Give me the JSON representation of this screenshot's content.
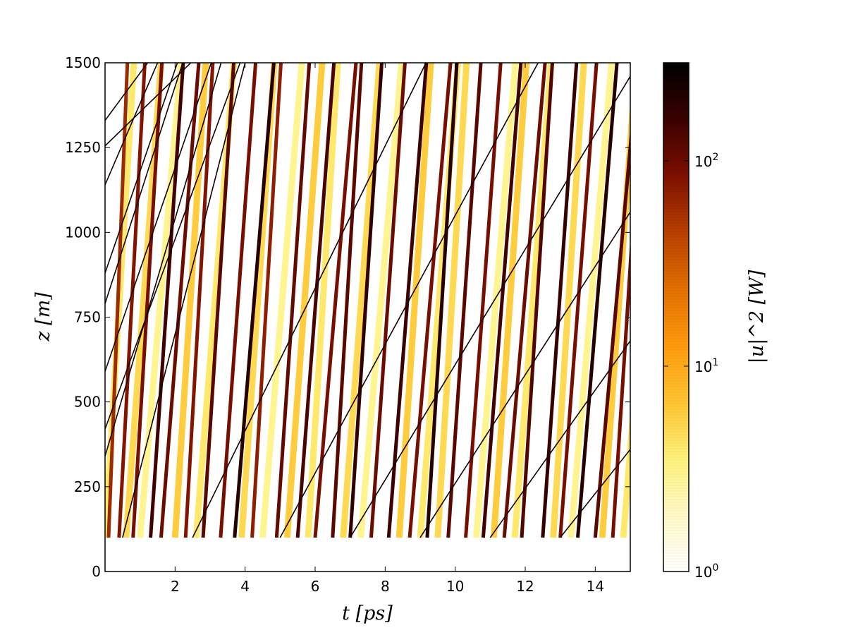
{
  "chart_data": {
    "type": "heatmap",
    "title": "",
    "xlabel": "t [ps]",
    "ylabel": "z [m]",
    "xlim": [
      0,
      15
    ],
    "ylim": [
      0,
      1500
    ],
    "xticks": [
      "2",
      "4",
      "6",
      "8",
      "10",
      "12",
      "14"
    ],
    "xtick_values": [
      2,
      4,
      6,
      8,
      10,
      12,
      14
    ],
    "yticks": [
      "0",
      "250",
      "500",
      "750",
      "1000",
      "1250",
      "1500"
    ],
    "ytick_values": [
      0,
      250,
      500,
      750,
      1000,
      1250,
      1500
    ],
    "data_z_start": 100,
    "colorbar": {
      "label": "|u|^2 [W]",
      "scale": "log",
      "range": [
        1,
        300
      ],
      "ticks": [
        {
          "base": "10",
          "exp": "0",
          "value": 1
        },
        {
          "base": "10",
          "exp": "1",
          "value": 10
        },
        {
          "base": "10",
          "exp": "2",
          "value": 100
        }
      ],
      "colormap": [
        "#ffffff",
        "#fffac8",
        "#fff27a",
        "#ffc430",
        "#ff9a0c",
        "#e27000",
        "#b84000",
        "#7e1000",
        "#3c0000",
        "#000000"
      ]
    },
    "streaks_bright": [
      {
        "t0": 0.1,
        "slope": 2600,
        "power": 60
      },
      {
        "t0": 0.4,
        "slope": 1900,
        "power": 80
      },
      {
        "t0": 0.8,
        "slope": 1700,
        "power": 90
      },
      {
        "t0": 1.3,
        "slope": 1500,
        "power": 150
      },
      {
        "t0": 1.6,
        "slope": 1300,
        "power": 100
      },
      {
        "t0": 2.3,
        "slope": 1800,
        "power": 80
      },
      {
        "t0": 2.8,
        "slope": 1600,
        "power": 120
      },
      {
        "t0": 3.3,
        "slope": 1400,
        "power": 90
      },
      {
        "t0": 3.7,
        "slope": 1250,
        "power": 200
      },
      {
        "t0": 4.2,
        "slope": 1700,
        "power": 70
      },
      {
        "t0": 4.9,
        "slope": 1500,
        "power": 110
      },
      {
        "t0": 5.5,
        "slope": 1350,
        "power": 140
      },
      {
        "t0": 6.0,
        "slope": 1200,
        "power": 90
      },
      {
        "t0": 6.5,
        "slope": 1700,
        "power": 120
      },
      {
        "t0": 7.0,
        "slope": 1550,
        "power": 180
      },
      {
        "t0": 7.6,
        "slope": 1450,
        "power": 100
      },
      {
        "t0": 8.1,
        "slope": 1300,
        "power": 160
      },
      {
        "t0": 8.7,
        "slope": 1200,
        "power": 90
      },
      {
        "t0": 9.2,
        "slope": 1650,
        "power": 200
      },
      {
        "t0": 9.8,
        "slope": 1500,
        "power": 120
      },
      {
        "t0": 10.3,
        "slope": 1400,
        "power": 90
      },
      {
        "t0": 10.8,
        "slope": 1300,
        "power": 150
      },
      {
        "t0": 11.4,
        "slope": 1200,
        "power": 100
      },
      {
        "t0": 11.9,
        "slope": 1600,
        "power": 130
      },
      {
        "t0": 12.5,
        "slope": 1450,
        "power": 170
      },
      {
        "t0": 13.0,
        "slope": 1350,
        "power": 90
      },
      {
        "t0": 13.5,
        "slope": 1250,
        "power": 200
      },
      {
        "t0": 14.0,
        "slope": 1150,
        "power": 120
      },
      {
        "t0": 14.5,
        "slope": 1600,
        "power": 90
      }
    ],
    "streaks_pale": [
      {
        "t0": 0.0,
        "slope": 1700,
        "power": 4
      },
      {
        "t0": 0.6,
        "slope": 1400,
        "power": 5
      },
      {
        "t0": 1.0,
        "slope": 1200,
        "power": 3
      },
      {
        "t0": 2.0,
        "slope": 1600,
        "power": 6
      },
      {
        "t0": 2.6,
        "slope": 1300,
        "power": 4
      },
      {
        "t0": 3.9,
        "slope": 1500,
        "power": 5
      },
      {
        "t0": 4.5,
        "slope": 1250,
        "power": 3
      },
      {
        "t0": 5.2,
        "slope": 1400,
        "power": 6
      },
      {
        "t0": 5.8,
        "slope": 1650,
        "power": 4
      },
      {
        "t0": 6.8,
        "slope": 1350,
        "power": 5
      },
      {
        "t0": 7.3,
        "slope": 1200,
        "power": 3
      },
      {
        "t0": 8.4,
        "slope": 1550,
        "power": 6
      },
      {
        "t0": 9.0,
        "slope": 1300,
        "power": 4
      },
      {
        "t0": 9.5,
        "slope": 1700,
        "power": 5
      },
      {
        "t0": 10.6,
        "slope": 1250,
        "power": 3
      },
      {
        "t0": 11.1,
        "slope": 1500,
        "power": 6
      },
      {
        "t0": 11.7,
        "slope": 1350,
        "power": 4
      },
      {
        "t0": 12.8,
        "slope": 1600,
        "power": 5
      },
      {
        "t0": 13.3,
        "slope": 1200,
        "power": 3
      },
      {
        "t0": 14.2,
        "slope": 1450,
        "power": 6
      },
      {
        "t0": 14.8,
        "slope": 1300,
        "power": 4
      }
    ],
    "streaks_shallow": [
      {
        "t0": 0.0,
        "slope": 140,
        "z0": 1330,
        "power": 250
      },
      {
        "t0": 0.0,
        "slope": 100,
        "z0": 1255,
        "power": 250
      },
      {
        "t0": 0.0,
        "slope": 240,
        "z0": 1140,
        "power": 250
      },
      {
        "t0": 0.0,
        "slope": 300,
        "z0": 880,
        "power": 250
      },
      {
        "t0": 0.0,
        "slope": 320,
        "z0": 790,
        "power": 250
      },
      {
        "t0": 0.0,
        "slope": 300,
        "z0": 590,
        "power": 250
      },
      {
        "t0": 0.0,
        "slope": 280,
        "z0": 420,
        "power": 250
      },
      {
        "t0": 0.0,
        "slope": 350,
        "z0": 340,
        "power": 250
      },
      {
        "t0": 0.5,
        "slope": 400,
        "z0": 100,
        "power": 250
      },
      {
        "t0": 2.5,
        "slope": 210,
        "z0": 100,
        "power": 250
      },
      {
        "t0": 5.0,
        "slope": 190,
        "z0": 100,
        "power": 250
      },
      {
        "t0": 7.0,
        "slope": 170,
        "z0": 100,
        "power": 250
      },
      {
        "t0": 9.0,
        "slope": 160,
        "z0": 100,
        "power": 250
      },
      {
        "t0": 11.0,
        "slope": 145,
        "z0": 100,
        "power": 250
      },
      {
        "t0": 13.0,
        "slope": 130,
        "z0": 100,
        "power": 250
      }
    ]
  }
}
